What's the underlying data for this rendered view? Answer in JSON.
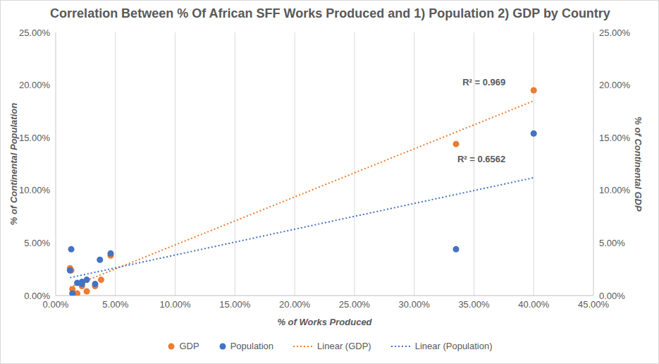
{
  "chart_data": {
    "type": "scatter",
    "title": "Correlation Between % Of African SFF Works Produced and 1) Population 2) GDP by Country",
    "x_label": "% of Works Produced",
    "y_label": "% of Continental Population",
    "y2_label": "% of Continental GDP",
    "xlim": [
      0,
      45
    ],
    "xticks": [
      {
        "value": 0,
        "label": "0.00%"
      },
      {
        "value": 5,
        "label": "5.00%"
      },
      {
        "value": 10,
        "label": "10.00%"
      },
      {
        "value": 15,
        "label": "15.00%"
      },
      {
        "value": 20,
        "label": "20.00%"
      },
      {
        "value": 25,
        "label": "25.00%"
      },
      {
        "value": 30,
        "label": "30.00%"
      },
      {
        "value": 35,
        "label": "35.00%"
      },
      {
        "value": 40,
        "label": "40.00%"
      },
      {
        "value": 45,
        "label": "45.00%"
      }
    ],
    "ylim": [
      0,
      25
    ],
    "yticks": [
      {
        "value": 0,
        "label": "0.00%"
      },
      {
        "value": 5,
        "label": "5.00%"
      },
      {
        "value": 10,
        "label": "10.00%"
      },
      {
        "value": 15,
        "label": "15.00%"
      },
      {
        "value": 20,
        "label": "20.00%"
      },
      {
        "value": 25,
        "label": "25.00%"
      }
    ],
    "y2lim": [
      0,
      25
    ],
    "y2ticks": [
      {
        "value": 0,
        "label": "0.00%"
      },
      {
        "value": 5,
        "label": "5.00%"
      },
      {
        "value": 10,
        "label": "10.00%"
      },
      {
        "value": 15,
        "label": "15.00%"
      },
      {
        "value": 20,
        "label": "20.00%"
      },
      {
        "value": 25,
        "label": "25.00%"
      }
    ],
    "grid": "x",
    "legend": "bottom",
    "series": [
      {
        "name": "GDP",
        "type": "scatter",
        "marker": "circle",
        "color": "#ED7D31",
        "axis": "y2",
        "x": [
          1.2,
          1.3,
          1.4,
          1.8,
          2.2,
          2.2,
          2.6,
          3.3,
          3.8,
          4.6,
          33.5,
          40.0
        ],
        "values": [
          2.6,
          2.4,
          0.6,
          0.2,
          0.9,
          1.2,
          0.4,
          0.9,
          1.5,
          3.8,
          14.4,
          19.5
        ]
      },
      {
        "name": "Population",
        "type": "scatter",
        "marker": "circle",
        "color": "#4472C4",
        "axis": "y",
        "x": [
          1.2,
          1.3,
          1.4,
          1.8,
          2.2,
          2.2,
          2.6,
          3.3,
          3.7,
          4.6,
          33.5,
          40.0
        ],
        "values": [
          2.4,
          4.4,
          0.2,
          1.2,
          1.3,
          1.1,
          1.5,
          1.1,
          3.4,
          4.0,
          4.4,
          15.4
        ]
      },
      {
        "name": "Linear (GDP)",
        "type": "line",
        "line_style": "dotted",
        "color": "#ED7D31",
        "axis": "y2",
        "x": [
          1.2,
          40.0
        ],
        "values": [
          0.8,
          18.5
        ],
        "annotation": "R² = 0.969"
      },
      {
        "name": "Linear (Population)",
        "type": "line",
        "line_style": "dotted",
        "color": "#4472C4",
        "axis": "y",
        "x": [
          1.2,
          40.0
        ],
        "values": [
          1.7,
          11.2
        ],
        "annotation": "R² = 0.6562"
      }
    ]
  }
}
